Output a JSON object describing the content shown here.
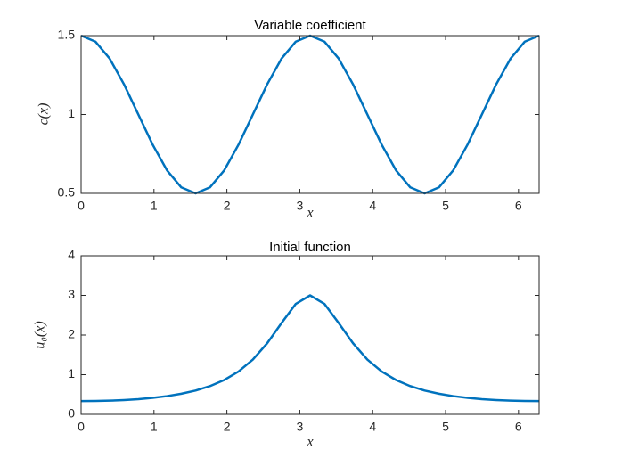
{
  "chart_data": [
    {
      "type": "line",
      "title": "Variable coefficient",
      "x_label": "x",
      "y_label": "c(x)",
      "x": [
        0,
        0.1963,
        0.3927,
        0.589,
        0.7854,
        0.9817,
        1.1781,
        1.3744,
        1.5708,
        1.7671,
        1.9635,
        2.1598,
        2.3562,
        2.5525,
        2.7489,
        2.9452,
        3.1416,
        3.3379,
        3.5343,
        3.7306,
        3.927,
        4.1233,
        4.3197,
        4.516,
        4.7124,
        4.9087,
        5.1051,
        5.3014,
        5.4978,
        5.6941,
        5.8905,
        6.0868,
        6.2832
      ],
      "series": [
        {
          "color": "#0072bd",
          "values": [
            1.5,
            1.462,
            1.354,
            1.191,
            1,
            0.809,
            0.646,
            0.538,
            0.5,
            0.538,
            0.646,
            0.809,
            1,
            1.191,
            1.354,
            1.462,
            1.5,
            1.462,
            1.354,
            1.191,
            1,
            0.809,
            0.646,
            0.538,
            0.5,
            0.538,
            0.646,
            0.809,
            1,
            1.191,
            1.354,
            1.462,
            1.5
          ]
        }
      ],
      "xlim": [
        0,
        6.2832
      ],
      "xticks": [
        0,
        1,
        2,
        3,
        4,
        5,
        6
      ],
      "ylim": [
        0.5,
        1.5
      ],
      "yticks": [
        0.5,
        1,
        1.5
      ]
    },
    {
      "type": "line",
      "title": "Initial function",
      "x_label": "x",
      "y_label": "u₀(x)",
      "x": [
        0,
        0.1963,
        0.3927,
        0.589,
        0.7854,
        0.9817,
        1.1781,
        1.3744,
        1.5708,
        1.7671,
        1.9635,
        2.1598,
        2.3562,
        2.5525,
        2.7489,
        2.9452,
        3.1416,
        3.3379,
        3.5343,
        3.7306,
        3.927,
        4.1233,
        4.3197,
        4.516,
        4.7124,
        4.9087,
        5.1051,
        5.3014,
        5.4978,
        5.6941,
        5.8905,
        6.0868,
        6.2832
      ],
      "series": [
        {
          "color": "#0072bd",
          "values": [
            0.333,
            0.336,
            0.345,
            0.36,
            0.383,
            0.415,
            0.459,
            0.519,
            0.6,
            0.711,
            0.865,
            1.08,
            1.381,
            1.792,
            2.3,
            2.786,
            3,
            2.786,
            2.3,
            1.792,
            1.381,
            1.08,
            0.865,
            0.711,
            0.6,
            0.519,
            0.459,
            0.415,
            0.383,
            0.36,
            0.345,
            0.336,
            0.333
          ]
        }
      ],
      "xlim": [
        0,
        6.2832
      ],
      "xticks": [
        0,
        1,
        2,
        3,
        4,
        5,
        6
      ],
      "ylim": [
        0,
        4
      ],
      "yticks": [
        0,
        1,
        2,
        3,
        4
      ]
    }
  ]
}
